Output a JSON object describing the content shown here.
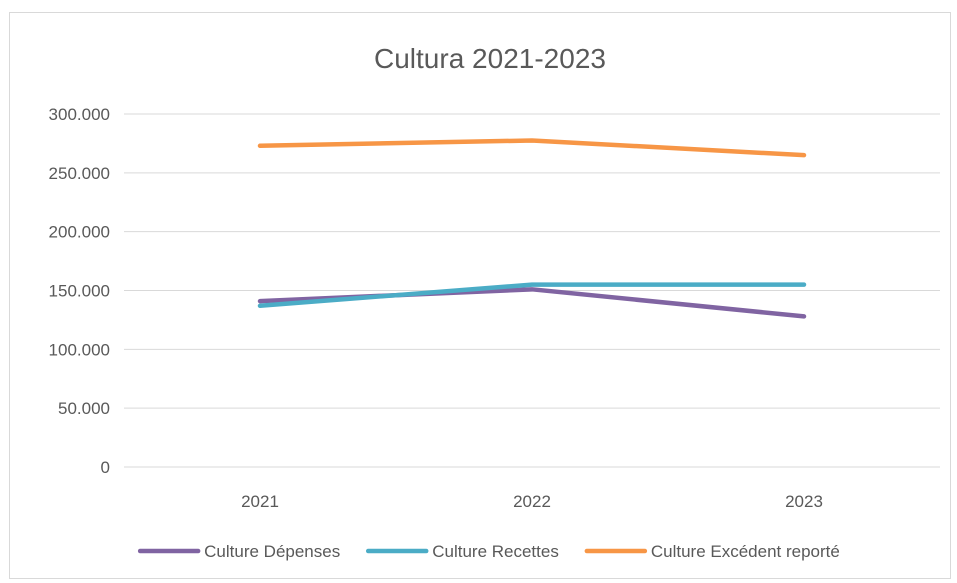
{
  "chart_data": {
    "type": "line",
    "title": "Cultura 2021-2023",
    "xlabel": "",
    "ylabel": "",
    "categories": [
      "2021",
      "2022",
      "2023"
    ],
    "ylim": [
      0,
      300000
    ],
    "y_ticks": [
      0,
      50000,
      100000,
      150000,
      200000,
      250000,
      300000
    ],
    "y_tick_labels": [
      "0",
      "50.000",
      "100.000",
      "150.000",
      "200.000",
      "250.000",
      "300.000"
    ],
    "grid": "horizontal",
    "legend_position": "bottom",
    "series": [
      {
        "name": "Culture Dépenses",
        "color": "#8064a2",
        "values": [
          141000,
          151000,
          128000
        ]
      },
      {
        "name": "Culture Recettes",
        "color": "#4bacc6",
        "values": [
          137000,
          155000,
          155000
        ]
      },
      {
        "name": "Culture Excédent reporté",
        "color": "#f79646",
        "values": [
          273000,
          277500,
          265000
        ]
      }
    ]
  }
}
